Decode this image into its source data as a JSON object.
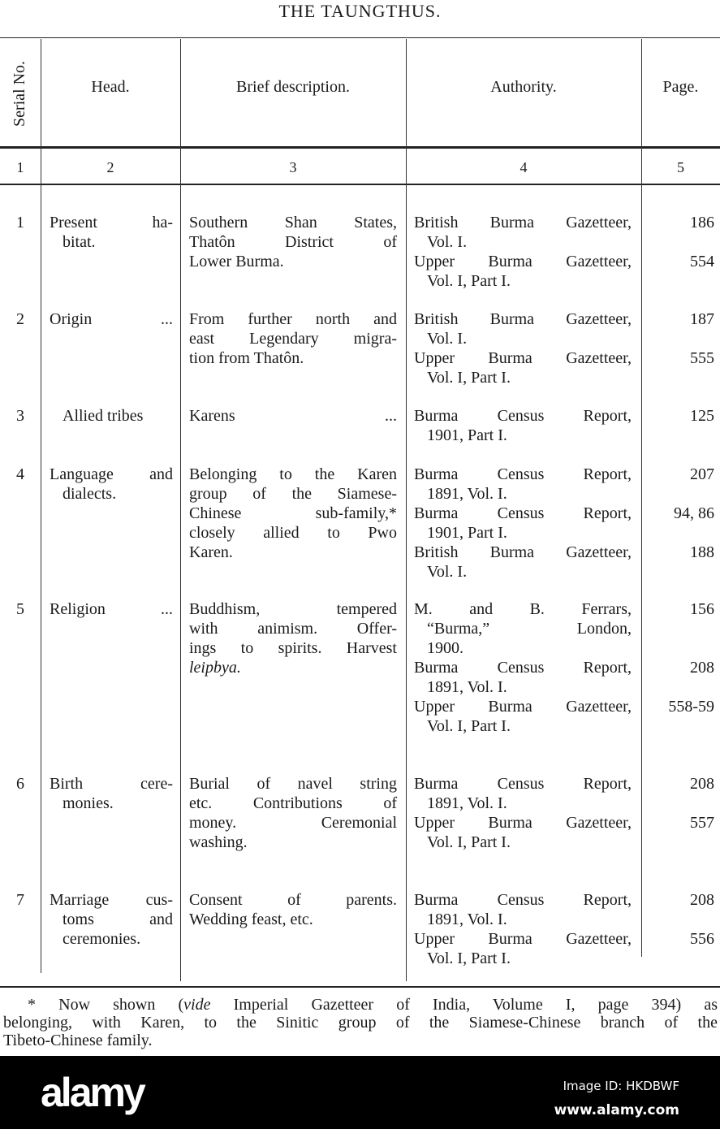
{
  "title": "THE TAUNGTHUS.",
  "headers": {
    "serial": "Serial No.",
    "head": "Head.",
    "description": "Brief description.",
    "authority": "Authority.",
    "page": "Page."
  },
  "column_numbers": [
    "1",
    "2",
    "3",
    "4",
    "5"
  ],
  "rows": [
    {
      "serial": "1",
      "head": [
        "Present ha-",
        "bitat."
      ],
      "desc": [
        "Southern Shan States,",
        "Thatôn District of",
        "Lower Burma."
      ],
      "authorities": [
        {
          "lines": [
            "British Burma Gazetteer,",
            "Vol. I."
          ],
          "page": "186"
        },
        {
          "lines": [
            "Upper Burma Gazetteer,",
            "Vol. I, Part I."
          ],
          "page": "554"
        }
      ]
    },
    {
      "serial": "2",
      "head": [
        "Origin ..."
      ],
      "desc": [
        "From further north and",
        "east Legendary migra-",
        "tion from Thatôn."
      ],
      "authorities": [
        {
          "lines": [
            "British Burma Gazetteer,",
            "Vol. I."
          ],
          "page": "187"
        },
        {
          "lines": [
            "Upper Burma Gazetteer,",
            "Vol. I, Part I."
          ],
          "page": "555"
        }
      ]
    },
    {
      "serial": "3",
      "head": [
        "Allied tribes"
      ],
      "desc": [
        "Karens ..."
      ],
      "authorities": [
        {
          "lines": [
            "Burma Census Report,",
            "1901, Part I."
          ],
          "page": "125"
        }
      ]
    },
    {
      "serial": "4",
      "head": [
        "Language and",
        "dialects."
      ],
      "desc": [
        "Belonging to the Karen",
        "group of the Siamese-",
        "Chinese sub-family,*",
        "closely allied to Pwo",
        "Karen."
      ],
      "authorities": [
        {
          "lines": [
            "Burma Census Report,",
            "1891, Vol. I."
          ],
          "page": "207"
        },
        {
          "lines": [
            "Burma Census Report,",
            "1901, Part I."
          ],
          "page": "94, 86"
        },
        {
          "lines": [
            "British Burma Gazetteer,",
            "Vol. I."
          ],
          "page": "188"
        }
      ]
    },
    {
      "serial": "5",
      "head": [
        "Religion ..."
      ],
      "desc": [
        "Buddhism, tempered",
        "with animism. Offer-",
        "ings to spirits. Harvest",
        "leipbya."
      ],
      "desc_italic_last": true,
      "authorities": [
        {
          "lines": [
            "M. and B. Ferrars,",
            "“Burma,” London,",
            "1900."
          ],
          "page": "156"
        },
        {
          "lines": [
            "Burma Census Report,",
            "1891, Vol. I."
          ],
          "page": "208"
        },
        {
          "lines": [
            "Upper Burma Gazetteer,",
            "Vol. I, Part I."
          ],
          "page": "558-59"
        }
      ]
    },
    {
      "serial": "6",
      "head": [
        "Birth cere-",
        "monies."
      ],
      "desc": [
        "Burial of navel string",
        "etc. Contributions of",
        "money. Ceremonial",
        "washing."
      ],
      "authorities": [
        {
          "lines": [
            "Burma Census Report,",
            "1891, Vol. I."
          ],
          "page": "208"
        },
        {
          "lines": [
            "Upper Burma Gazetteer,",
            "Vol. I, Part I."
          ],
          "page": "557"
        }
      ]
    },
    {
      "serial": "7",
      "head": [
        "Marriage cus-",
        "toms and",
        "ceremonies."
      ],
      "desc": [
        "Consent of parents.",
        "Wedding feast, etc."
      ],
      "authorities": [
        {
          "lines": [
            "Burma Census Report,",
            "1891, Vol. I."
          ],
          "page": "208"
        },
        {
          "lines": [
            "Upper Burma Gazetteer,",
            "Vol. I, Part I."
          ],
          "page": "556"
        }
      ]
    }
  ],
  "footnote": {
    "before": "* Now shown (",
    "italic": "vide",
    "after": " Imperial Gazetteer of India, Volume I, page 394) as",
    "line2": "belonging, with Karen, to the Sinitic group of the Siamese-Chinese branch of the",
    "line3": "Tibeto-Chinese family."
  },
  "watermark": {
    "logo": "alamy",
    "image_id": "Image ID: HKDBWF",
    "url": "www.alamy.com"
  }
}
